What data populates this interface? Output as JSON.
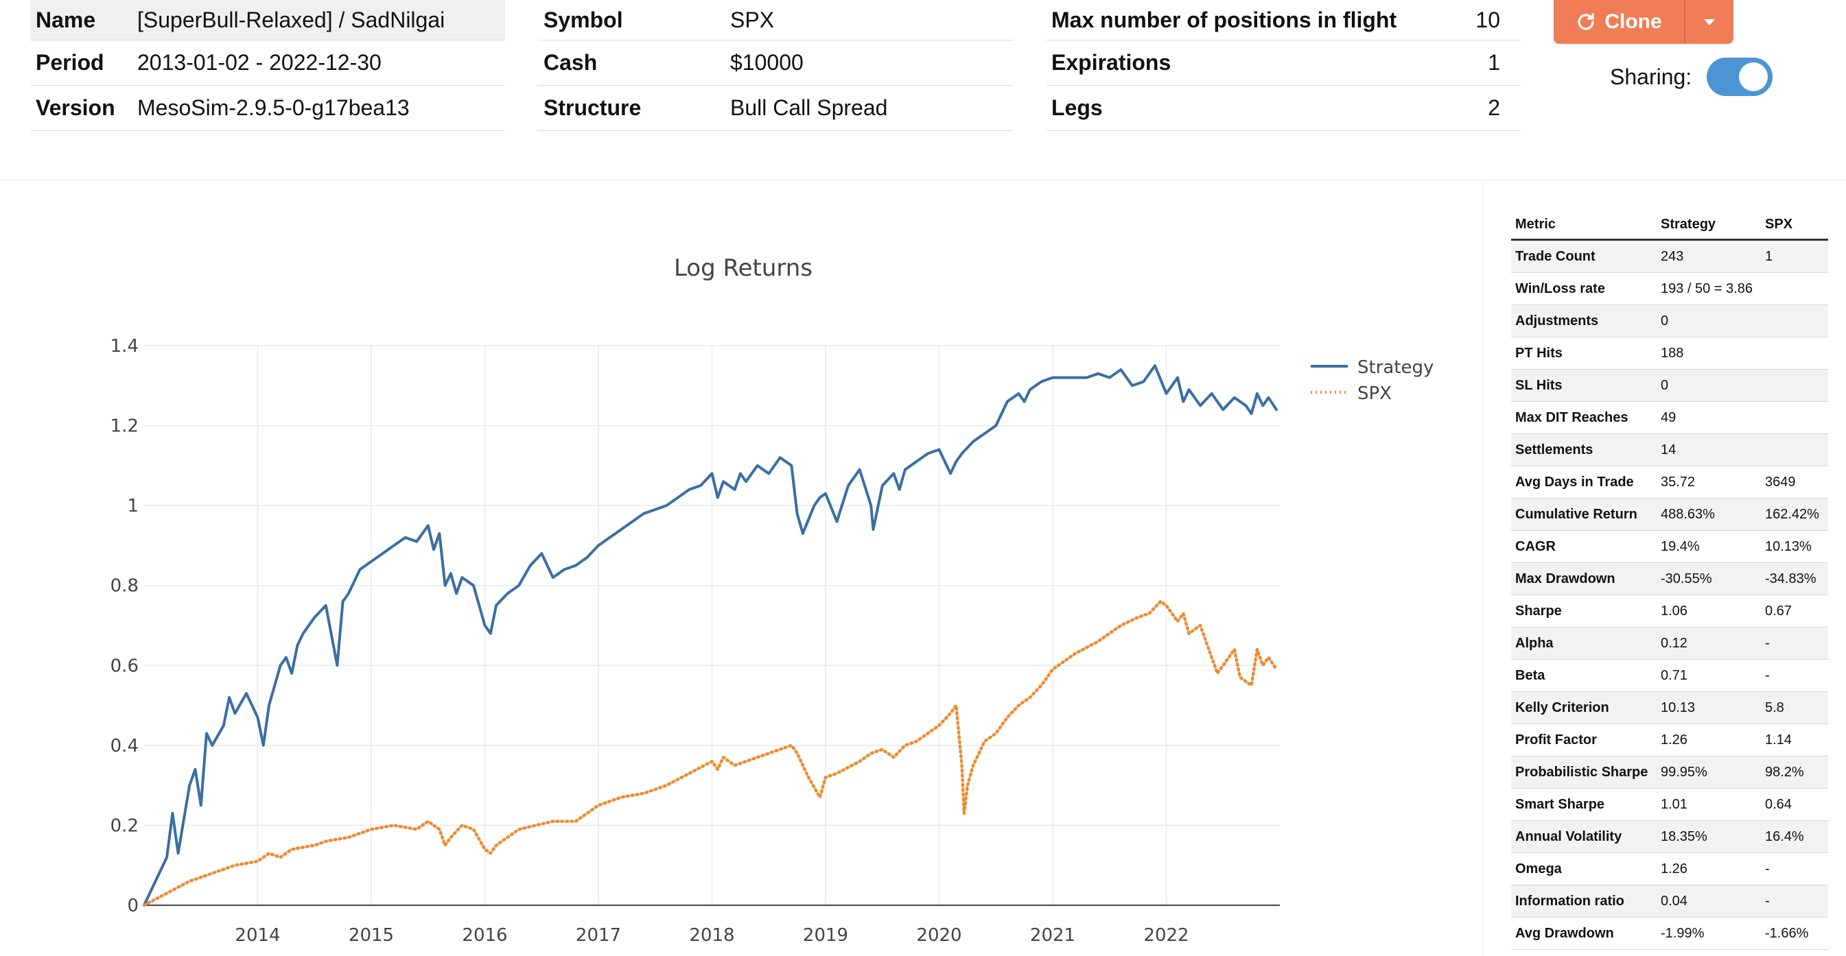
{
  "header": {
    "left": [
      {
        "key": "Name",
        "value": "[SuperBull-Relaxed] / SadNilgai"
      },
      {
        "key": "Period",
        "value": "2013-01-02 - 2022-12-30"
      },
      {
        "key": "Version",
        "value": "MesoSim-2.9.5-0-g17bea13"
      }
    ],
    "middle": [
      {
        "key": "Symbol",
        "value": "SPX"
      },
      {
        "key": "Cash",
        "value": "$10000"
      },
      {
        "key": "Structure",
        "value": "Bull Call Spread"
      }
    ],
    "right": [
      {
        "key": "Max number of positions in flight",
        "value": "10"
      },
      {
        "key": "Expirations",
        "value": "1"
      },
      {
        "key": "Legs",
        "value": "2"
      }
    ],
    "clone_label": "Clone",
    "sharing_label": "Sharing:",
    "sharing_on": true
  },
  "colors": {
    "strategy": "#3a6ea5",
    "spx": "#ef8a2e",
    "accent": "#f07d55",
    "toggle": "#4c94d3"
  },
  "chart_data": {
    "type": "line",
    "title": "Log Returns",
    "xlabel": "",
    "ylabel": "",
    "xlim": [
      2013.0,
      2023.0
    ],
    "ylim": [
      0,
      1.4
    ],
    "x_ticks": [
      "2014",
      "2015",
      "2016",
      "2017",
      "2018",
      "2019",
      "2020",
      "2021",
      "2022"
    ],
    "y_ticks": [
      "0",
      "0.2",
      "0.4",
      "0.6",
      "0.8",
      "1",
      "1.2",
      "1.4"
    ],
    "legend_position": "top-right",
    "series": [
      {
        "name": "Strategy",
        "style": "solid",
        "x": [
          2013.0,
          2013.1,
          2013.2,
          2013.25,
          2013.3,
          2013.4,
          2013.45,
          2013.5,
          2013.55,
          2013.6,
          2013.7,
          2013.75,
          2013.8,
          2013.9,
          2014.0,
          2014.05,
          2014.1,
          2014.15,
          2014.2,
          2014.25,
          2014.3,
          2014.35,
          2014.4,
          2014.5,
          2014.6,
          2014.7,
          2014.75,
          2014.8,
          2014.9,
          2015.0,
          2015.1,
          2015.2,
          2015.3,
          2015.4,
          2015.5,
          2015.55,
          2015.6,
          2015.65,
          2015.7,
          2015.75,
          2015.8,
          2015.9,
          2016.0,
          2016.05,
          2016.1,
          2016.2,
          2016.3,
          2016.4,
          2016.5,
          2016.6,
          2016.7,
          2016.8,
          2016.9,
          2017.0,
          2017.1,
          2017.2,
          2017.3,
          2017.4,
          2017.5,
          2017.6,
          2017.7,
          2017.8,
          2017.9,
          2018.0,
          2018.05,
          2018.1,
          2018.2,
          2018.25,
          2018.3,
          2018.4,
          2018.5,
          2018.6,
          2018.7,
          2018.75,
          2018.8,
          2018.9,
          2018.95,
          2019.0,
          2019.1,
          2019.2,
          2019.3,
          2019.4,
          2019.42,
          2019.5,
          2019.6,
          2019.65,
          2019.7,
          2019.8,
          2019.9,
          2020.0,
          2020.1,
          2020.15,
          2020.2,
          2020.3,
          2020.4,
          2020.5,
          2020.6,
          2020.7,
          2020.75,
          2020.8,
          2020.9,
          2021.0,
          2021.1,
          2021.2,
          2021.3,
          2021.4,
          2021.5,
          2021.6,
          2021.7,
          2021.8,
          2021.9,
          2022.0,
          2022.1,
          2022.15,
          2022.2,
          2022.3,
          2022.4,
          2022.5,
          2022.6,
          2022.7,
          2022.75,
          2022.8,
          2022.85,
          2022.9,
          2022.97
        ],
        "y": [
          0.0,
          0.06,
          0.12,
          0.23,
          0.13,
          0.3,
          0.34,
          0.25,
          0.43,
          0.4,
          0.45,
          0.52,
          0.48,
          0.53,
          0.47,
          0.4,
          0.5,
          0.55,
          0.6,
          0.62,
          0.58,
          0.65,
          0.68,
          0.72,
          0.75,
          0.6,
          0.76,
          0.78,
          0.84,
          0.86,
          0.88,
          0.9,
          0.92,
          0.91,
          0.95,
          0.89,
          0.93,
          0.8,
          0.83,
          0.78,
          0.82,
          0.8,
          0.7,
          0.68,
          0.75,
          0.78,
          0.8,
          0.85,
          0.88,
          0.82,
          0.84,
          0.85,
          0.87,
          0.9,
          0.92,
          0.94,
          0.96,
          0.98,
          0.99,
          1.0,
          1.02,
          1.04,
          1.05,
          1.08,
          1.02,
          1.06,
          1.04,
          1.08,
          1.06,
          1.1,
          1.08,
          1.12,
          1.1,
          0.98,
          0.93,
          1.0,
          1.02,
          1.03,
          0.96,
          1.05,
          1.09,
          1.0,
          0.94,
          1.05,
          1.08,
          1.04,
          1.09,
          1.11,
          1.13,
          1.14,
          1.08,
          1.11,
          1.13,
          1.16,
          1.18,
          1.2,
          1.26,
          1.28,
          1.26,
          1.29,
          1.31,
          1.32,
          1.32,
          1.32,
          1.32,
          1.33,
          1.32,
          1.34,
          1.3,
          1.31,
          1.35,
          1.28,
          1.32,
          1.26,
          1.29,
          1.25,
          1.28,
          1.24,
          1.27,
          1.25,
          1.23,
          1.28,
          1.25,
          1.27,
          1.24
        ]
      },
      {
        "name": "SPX",
        "style": "dotted",
        "x": [
          2013.0,
          2013.2,
          2013.4,
          2013.6,
          2013.8,
          2014.0,
          2014.1,
          2014.2,
          2014.3,
          2014.5,
          2014.6,
          2014.8,
          2014.9,
          2015.0,
          2015.2,
          2015.4,
          2015.5,
          2015.6,
          2015.65,
          2015.7,
          2015.8,
          2015.9,
          2016.0,
          2016.05,
          2016.1,
          2016.2,
          2016.3,
          2016.45,
          2016.6,
          2016.8,
          2016.9,
          2017.0,
          2017.2,
          2017.4,
          2017.6,
          2017.8,
          2018.0,
          2018.05,
          2018.1,
          2018.2,
          2018.3,
          2018.5,
          2018.7,
          2018.75,
          2018.85,
          2018.95,
          2019.0,
          2019.1,
          2019.3,
          2019.4,
          2019.5,
          2019.6,
          2019.7,
          2019.8,
          2019.9,
          2020.0,
          2020.1,
          2020.15,
          2020.2,
          2020.22,
          2020.25,
          2020.3,
          2020.4,
          2020.5,
          2020.6,
          2020.7,
          2020.8,
          2020.9,
          2021.0,
          2021.2,
          2021.4,
          2021.6,
          2021.75,
          2021.85,
          2021.95,
          2022.0,
          2022.1,
          2022.15,
          2022.2,
          2022.3,
          2022.4,
          2022.45,
          2022.5,
          2022.6,
          2022.65,
          2022.75,
          2022.8,
          2022.85,
          2022.9,
          2022.97
        ],
        "y": [
          0.0,
          0.03,
          0.06,
          0.08,
          0.1,
          0.11,
          0.13,
          0.12,
          0.14,
          0.15,
          0.16,
          0.17,
          0.18,
          0.19,
          0.2,
          0.19,
          0.21,
          0.19,
          0.15,
          0.17,
          0.2,
          0.19,
          0.14,
          0.13,
          0.15,
          0.17,
          0.19,
          0.2,
          0.21,
          0.21,
          0.23,
          0.25,
          0.27,
          0.28,
          0.3,
          0.33,
          0.36,
          0.34,
          0.37,
          0.35,
          0.36,
          0.38,
          0.4,
          0.38,
          0.32,
          0.27,
          0.32,
          0.33,
          0.36,
          0.38,
          0.39,
          0.37,
          0.4,
          0.41,
          0.43,
          0.45,
          0.48,
          0.5,
          0.35,
          0.23,
          0.3,
          0.35,
          0.41,
          0.43,
          0.47,
          0.5,
          0.52,
          0.55,
          0.59,
          0.63,
          0.66,
          0.7,
          0.72,
          0.73,
          0.76,
          0.75,
          0.71,
          0.73,
          0.68,
          0.7,
          0.62,
          0.58,
          0.6,
          0.64,
          0.57,
          0.55,
          0.64,
          0.6,
          0.62,
          0.59
        ]
      }
    ]
  },
  "metrics": {
    "columns": [
      "Metric",
      "Strategy",
      "SPX"
    ],
    "rows": [
      [
        "Trade Count",
        "243",
        "1"
      ],
      [
        "Win/Loss rate",
        "193 / 50 = 3.86",
        ""
      ],
      [
        "Adjustments",
        "0",
        ""
      ],
      [
        "PT Hits",
        "188",
        ""
      ],
      [
        "SL Hits",
        "0",
        ""
      ],
      [
        "Max DIT Reaches",
        "49",
        ""
      ],
      [
        "Settlements",
        "14",
        ""
      ],
      [
        "Avg Days in Trade",
        "35.72",
        "3649"
      ],
      [
        "Cumulative Return",
        "488.63%",
        "162.42%"
      ],
      [
        "CAGR",
        "19.4%",
        "10.13%"
      ],
      [
        "Max Drawdown",
        "-30.55%",
        "-34.83%"
      ],
      [
        "Sharpe",
        "1.06",
        "0.67"
      ],
      [
        "Alpha",
        "0.12",
        "-"
      ],
      [
        "Beta",
        "0.71",
        "-"
      ],
      [
        "Kelly Criterion",
        "10.13",
        "5.8"
      ],
      [
        "Profit Factor",
        "1.26",
        "1.14"
      ],
      [
        "Probabilistic Sharpe",
        "99.95%",
        "98.2%"
      ],
      [
        "Smart Sharpe",
        "1.01",
        "0.64"
      ],
      [
        "Annual Volatility",
        "18.35%",
        "16.4%"
      ],
      [
        "Omega",
        "1.26",
        "-"
      ],
      [
        "Information ratio",
        "0.04",
        "-"
      ],
      [
        "Avg Drawdown",
        "-1.99%",
        "-1.66%"
      ]
    ]
  }
}
